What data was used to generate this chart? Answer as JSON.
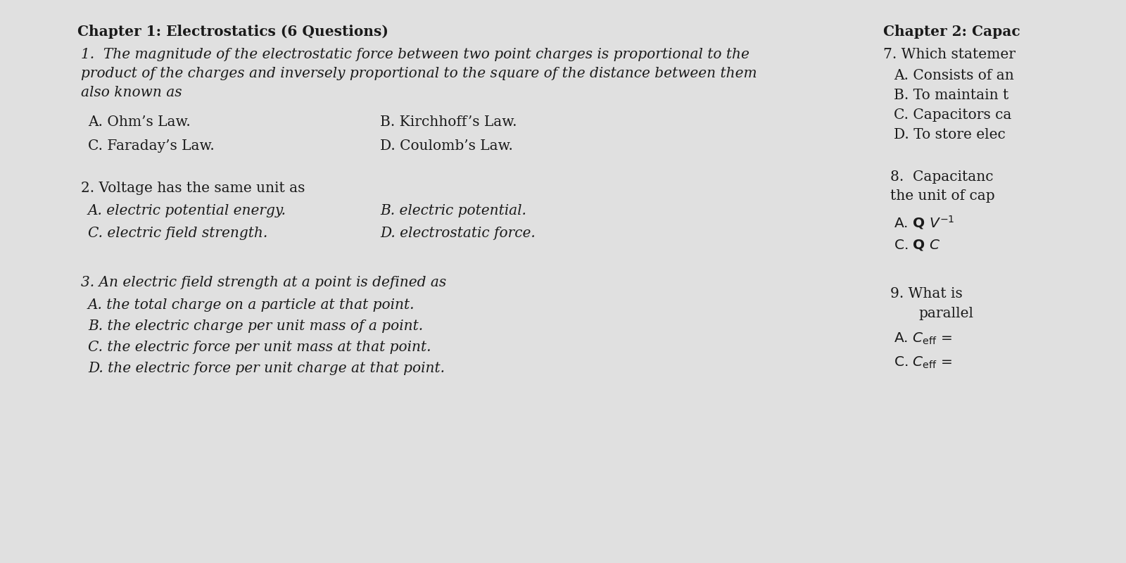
{
  "bg_color": "#e0e0e0",
  "text_color": "#1a1a1a",
  "chapter1_header": "Chapter 1: Electrostatics (6 Questions)",
  "chapter2_header": "Chapter 2: Capac",
  "q1_line1": "1.  The magnitude of the electrostatic force between two point charges is proportional to the",
  "q1_line2": "product of the charges and inversely proportional to the square of the distance between them",
  "q1_line3": "also known as",
  "q1_a": "A. Ohm’s Law.",
  "q1_b": "B. Kirchhoff’s Law.",
  "q1_c": "C. Faraday’s Law.",
  "q1_d": "D. Coulomb’s Law.",
  "q2_text": "2. Voltage has the same unit as",
  "q2_a": "A. electric potential energy.",
  "q2_b": "B. electric potential.",
  "q2_c": "C. electric field strength.",
  "q2_d": "D. electrostatic force.",
  "q3_text": "3. An electric field strength at a point is defined as",
  "q3_a": "A. the total charge on a particle at that point.",
  "q3_b": "B. the electric charge per unit mass of a point.",
  "q3_c": "C. the electric force per unit mass at that point.",
  "q3_d": "D. the electric force per unit charge at that point.",
  "q7_text": "7. Which statemer",
  "q7_a": "A. Consists of an",
  "q7_b": "B. To maintain t",
  "q7_c": "C. Capacitors ca",
  "q7_d": "D. To store elec",
  "q8_line1": "8.  Capacitanc",
  "q8_line2": "the unit of cap",
  "q8_a1": "A. Q ",
  "q8_a2": "V",
  "q8_a3": "−1",
  "q8_c1": "C. Q",
  "q8_c2": "C",
  "q9_text": "9. What is",
  "q9_text2": "parallel",
  "q9_a_pre": "A. C",
  "q9_a_sub": "eff",
  "q9_a_post": " = ",
  "q9_c_pre": "C. C",
  "q9_c_sub": "eff",
  "q9_c_post": " ="
}
